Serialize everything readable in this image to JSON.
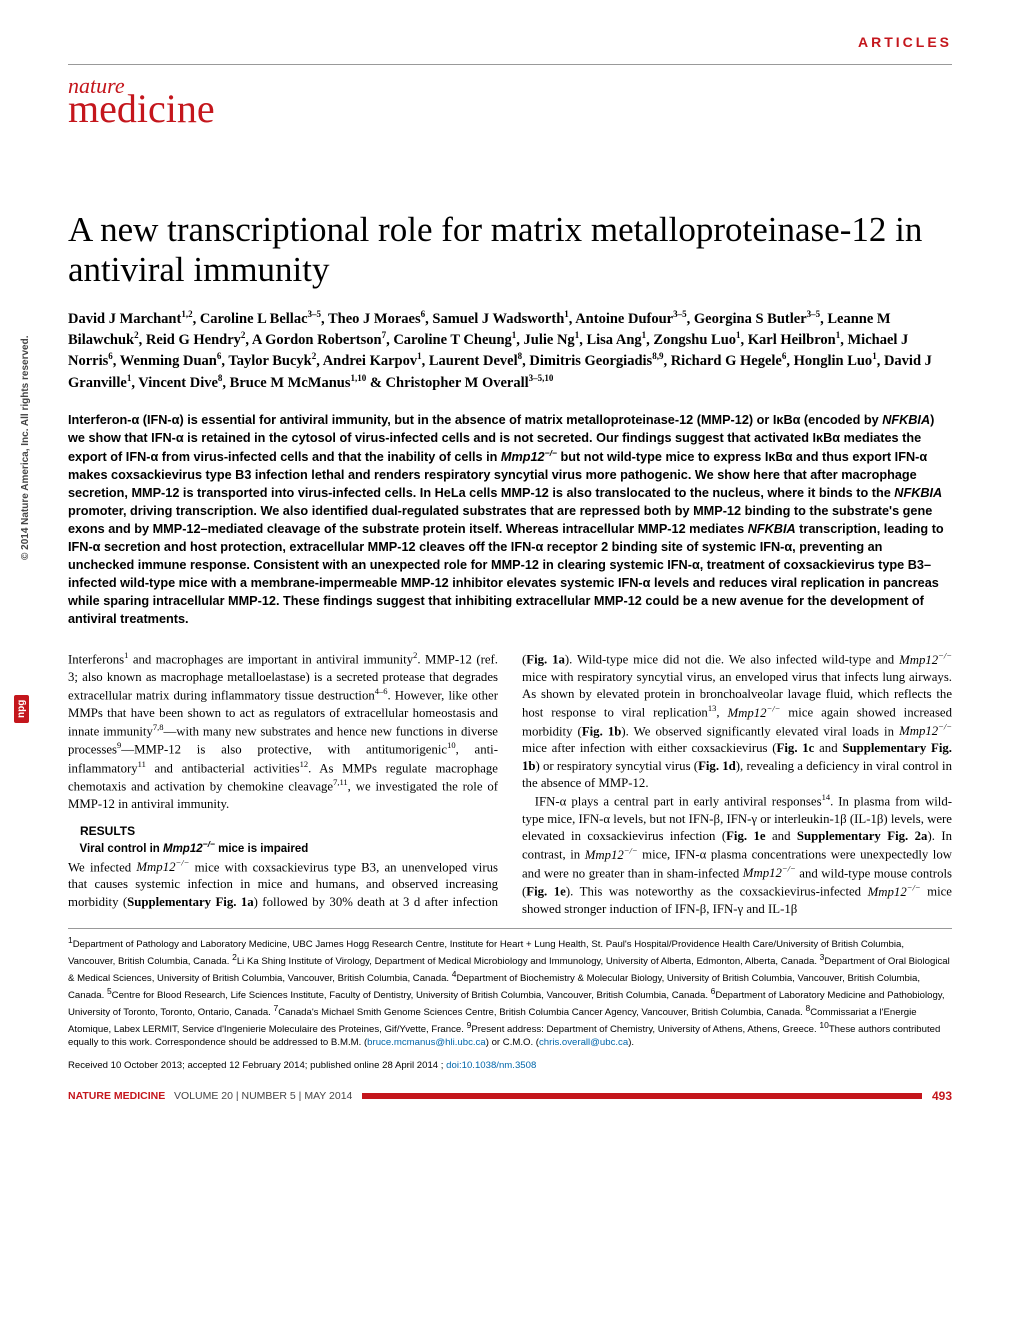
{
  "header": {
    "label": "ARTICLES"
  },
  "logo": {
    "top": "nature",
    "bottom": "medicine"
  },
  "title": "A new transcriptional role for matrix metalloproteinase-12 in antiviral immunity",
  "authors_html": "David J Marchant<sup>1,2</sup>, Caroline L Bellac<sup>3–5</sup>, Theo J Moraes<sup>6</sup>, Samuel J Wadsworth<sup>1</sup>, Antoine Dufour<sup>3–5</sup>, Georgina S Butler<sup>3–5</sup>, Leanne M Bilawchuk<sup>2</sup>, Reid G Hendry<sup>2</sup>, A Gordon Robertson<sup>7</sup>, Caroline T Cheung<sup>1</sup>, Julie Ng<sup>1</sup>, Lisa Ang<sup>1</sup>, Zongshu Luo<sup>1</sup>, Karl Heilbron<sup>1</sup>, Michael J Norris<sup>6</sup>, Wenming Duan<sup>6</sup>, Taylor Bucyk<sup>2</sup>, Andrei Karpov<sup>1</sup>, Laurent Devel<sup>8</sup>, Dimitris Georgiadis<sup>8,9</sup>, Richard G Hegele<sup>6</sup>, Honglin Luo<sup>1</sup>, David J Granville<sup>1</sup>, Vincent Dive<sup>8</sup>, Bruce M McManus<sup>1,10</sup> & Christopher M Overall<sup>3–5,10</sup>",
  "abstract_html": "Interferon-α (IFN-α) is essential for antiviral immunity, but in the absence of matrix metalloproteinase-12 (MMP-12) or IκBα (encoded by <em>NFKBIA</em>) we show that IFN-α is retained in the cytosol of virus-infected cells and is not secreted. Our findings suggest that activated IκBα mediates the export of IFN-α from virus-infected cells and that the inability of cells in <em>Mmp12<sup>−/−</sup></em> but not wild-type mice to express IκBα and thus export IFN-α makes coxsackievirus type B3 infection lethal and renders respiratory syncytial virus more pathogenic. We show here that after macrophage secretion, MMP-12 is transported into virus-infected cells. In HeLa cells MMP-12 is also translocated to the nucleus, where it binds to the <em>NFKBIA</em> promoter, driving transcription. We also identified dual-regulated substrates that are repressed both by MMP-12 binding to the substrate's gene exons and by MMP-12–mediated cleavage of the substrate protein itself. Whereas intracellular MMP-12 mediates <em>NFKBIA</em> transcription, leading to IFN-α secretion and host protection, extracellular MMP-12 cleaves off the IFN-α receptor 2 binding site of systemic IFN-α, preventing an unchecked immune response. Consistent with an unexpected role for MMP-12 in clearing systemic IFN-α, treatment of coxsackievirus type B3–infected wild-type mice with a membrane-impermeable MMP-12 inhibitor elevates systemic IFN-α levels and reduces viral replication in pancreas while sparing intracellular MMP-12. These findings suggest that inhibiting extracellular MMP-12 could be a new avenue for the development of antiviral treatments.",
  "body": {
    "p1_html": "Interferons<sup>1</sup> and macrophages are important in antiviral immunity<sup>2</sup>. MMP-12 (ref. 3; also known as macrophage metalloelastase) is a secreted protease that degrades extracellular matrix during inflammatory tissue destruction<sup>4–6</sup>. However, like other MMPs that have been shown to act as regulators of extracellular homeostasis and innate immunity<sup>7,8</sup>—with many new substrates and hence new functions in diverse processes<sup>9</sup>—MMP-12 is also protective, with antitumorigenic<sup>10</sup>, anti-inflammatory<sup>11</sup> and antibacterial activities<sup>12</sup>. As MMPs regulate macrophage chemotaxis and activation by chemokine cleavage<sup>7,11</sup>, we investigated the role of MMP-12 in antiviral immunity.",
    "results_hd": "RESULTS",
    "sub_hd_html": "Viral control in <em>Mmp12<sup>−/−</sup></em> mice is impaired",
    "p2_html": "We infected <em>Mmp12<sup>−/−</sup></em> mice with coxsackievirus type B3, an unenveloped virus that causes systemic infection in mice and humans, and observed increasing morbidity (<b>Supplementary Fig. 1a</b>) followed by 30% death at 3 d after infection (<b>Fig. 1a</b>). Wild-type mice did not die. We also infected wild-type and <em>Mmp12<sup>−/−</sup></em> mice with respiratory syncytial virus, an enveloped virus that infects lung airways. As shown by elevated protein in bronchoalveolar lavage fluid, which reflects the host response to viral replication<sup>13</sup>, <em>Mmp12<sup>−/−</sup></em> mice again showed increased morbidity (<b>Fig. 1b</b>). We observed significantly elevated viral loads in <em>Mmp12<sup>−/−</sup></em> mice after infection with either coxsackie­virus (<b>Fig. 1c</b> and <b>Supplementary Fig. 1b</b>) or respiratory syncytial virus (<b>Fig. 1d</b>), revealing a deficiency in viral control in the absence of MMP-12.",
    "p3_html": "IFN-α plays a central part in early antiviral responses<sup>14</sup>. In plasma from wild-type mice, IFN-α levels, but not IFN-β, IFN-γ or interleukin-1β (IL-1β) levels, were elevated in coxsackievirus infection (<b>Fig. 1e</b> and <b>Supplementary Fig. 2a</b>). In contrast, in <em>Mmp12<sup>−/−</sup></em> mice, IFN-α plasma concentrations were unexpectedly low and were no greater than in sham-infected <em>Mmp12<sup>−/−</sup></em> and wild-type mouse controls (<b>Fig. 1e</b>). This was noteworthy as the coxsackievirus-infected <em>Mmp12<sup>−/−</sup></em> mice showed stronger induction of IFN-β, IFN-γ and IL-1β"
  },
  "affiliations_html": "<sup>1</sup>Department of Pathology and Laboratory Medicine, UBC James Hogg Research Centre, Institute for Heart + Lung Health, St. Paul's Hospital/Providence Health Care/University of British Columbia, Vancouver, British Columbia, Canada. <sup>2</sup>Li Ka Shing Institute of Virology, Department of Medical Microbiology and Immunology, University of Alberta, Edmonton, Alberta, Canada. <sup>3</sup>Department of Oral Biological & Medical Sciences, University of British Columbia, Vancouver, British Columbia, Canada. <sup>4</sup>Department of Biochemistry & Molecular Biology, University of British Columbia, Vancouver, British Columbia, Canada. <sup>5</sup>Centre for Blood Research, Life Sciences Institute, Faculty of Dentistry, University of British Columbia, Vancouver, British Columbia, Canada. <sup>6</sup>Department of Laboratory Medicine and Pathobiology, University of Toronto, Toronto, Ontario, Canada. <sup>7</sup>Canada's Michael Smith Genome Sciences Centre, British Columbia Cancer Agency, Vancouver, British Columbia, Canada. <sup>8</sup>Commissariat a l'Energie Atomique, Labex LERMIT, Service d'Ingenierie Moleculaire des Proteines, Gif/Yvette, France. <sup>9</sup>Present address: Department of Chemistry, University of Athens, Athens, Greece. <sup>10</sup>These authors contributed equally to this work. Correspondence should be addressed to B.M.M. (<a>bruce.mcmanus@hli.ubc.ca</a>) or C.M.O. (<a>chris.overall@ubc.ca</a>).",
  "received_html": "Received 10 October 2013; accepted 12 February 2014; published online 28 April 2014 ; <a>doi:10.1038/nm.3508</a>",
  "footer": {
    "journal": "NATURE MEDICINE",
    "issue": "VOLUME 20 | NUMBER 5 | MAY 2014",
    "page": "493"
  },
  "side": {
    "copyright": "© 2014 Nature America, Inc. All rights reserved.",
    "npg": "npg"
  },
  "colors": {
    "brand": "#c4161c",
    "link": "#0066aa",
    "text": "#000000",
    "rule": "#999999"
  },
  "typography": {
    "title_pt": 35,
    "abstract_pt": 12.7,
    "body_pt": 12.8,
    "affil_pt": 9.6
  }
}
